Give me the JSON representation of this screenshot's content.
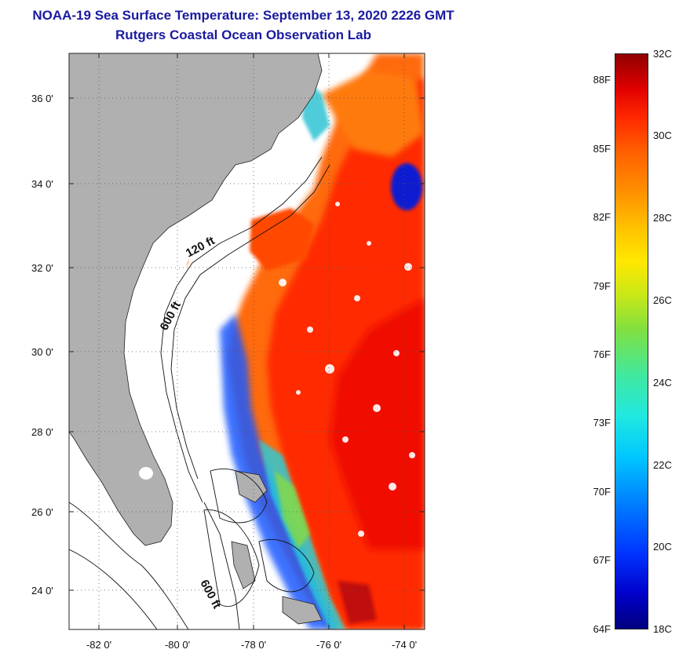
{
  "title": "NOAA-19 Sea Surface Temperature:  September 13, 2020 2226 GMT",
  "subtitle": "Rutgers Coastal Ocean Observation Lab",
  "map": {
    "lat_ticks": [
      "36 0'",
      "34 0'",
      "32 0'",
      "30 0'",
      "28 0'",
      "26 0'",
      "24 0'"
    ],
    "lon_ticks": [
      "-82 0'",
      "-80 0'",
      "-78 0'",
      "-76 0'",
      "-74 0'"
    ],
    "isobath_labels": [
      "120 ft",
      "600 ft",
      "600 ft"
    ]
  },
  "colorbar": {
    "fahrenheit": [
      "88F",
      "85F",
      "82F",
      "79F",
      "76F",
      "73F",
      "70F",
      "67F",
      "64F"
    ],
    "celsius": [
      "32C",
      "30C",
      "28C",
      "26C",
      "24C",
      "22C",
      "20C",
      "18C"
    ],
    "min_c": 18,
    "max_c": 32
  },
  "colors": {
    "title": "#1a1aa0",
    "land": "#b0b0b0",
    "warm": "#ff4000",
    "cool": "#0040ff"
  }
}
